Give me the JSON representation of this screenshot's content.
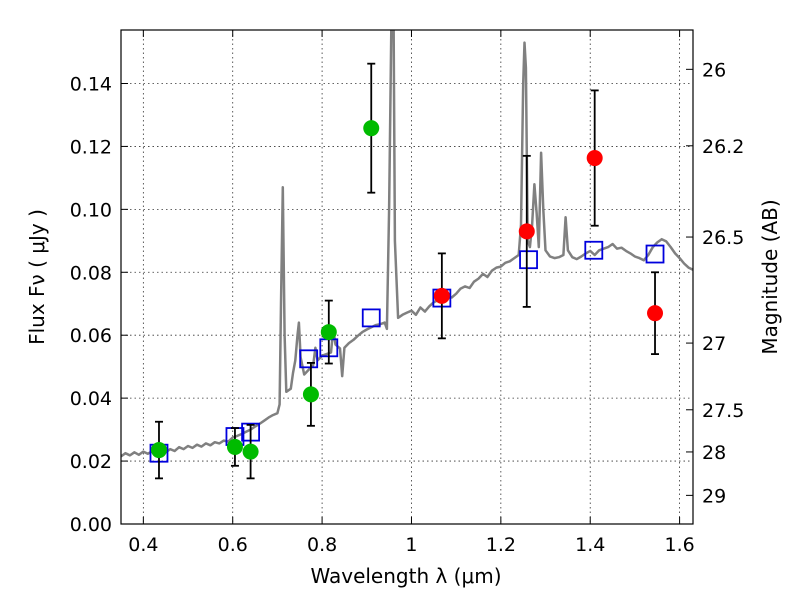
{
  "chart_data": {
    "type": "scatter",
    "xlabel": "Wavelength  λ (μm)",
    "ylabel": "Flux  Fν  ( μJy )",
    "y2label": "Magnitude (AB)",
    "xlim": [
      0.35,
      1.63
    ],
    "ylim": [
      0.0,
      0.157
    ],
    "grid": true,
    "x_ticks": [
      0.4,
      0.6,
      0.8,
      1.0,
      1.2,
      1.4,
      1.6
    ],
    "x_tick_labels": [
      "0.4",
      "0.6",
      "0.8",
      "1",
      "1.2",
      "1.4",
      "1.6"
    ],
    "y_ticks": [
      0.0,
      0.02,
      0.04,
      0.06,
      0.08,
      0.1,
      0.12,
      0.14
    ],
    "y_tick_labels": [
      "0.00",
      "0.02",
      "0.04",
      "0.06",
      "0.08",
      "0.10",
      "0.12",
      "0.14"
    ],
    "y2_ticks": [
      {
        "label": "26",
        "flux": 0.1445
      },
      {
        "label": "26.2",
        "flux": 0.1202
      },
      {
        "label": "26.5",
        "flux": 0.0912
      },
      {
        "label": "27",
        "flux": 0.0575
      },
      {
        "label": "27.5",
        "flux": 0.0363
      },
      {
        "label": "28",
        "flux": 0.0229
      },
      {
        "label": "29",
        "flux": 0.0091
      }
    ],
    "colors": {
      "spectrum": "#808080",
      "green_points": "#00bb00",
      "red_points": "#ff0000",
      "model_squares": "#0000dd",
      "errorbars": "#000000"
    },
    "series": [
      {
        "kind": "spectrum",
        "points": [
          [
            0.35,
            0.0215
          ],
          [
            0.36,
            0.0225
          ],
          [
            0.37,
            0.0218
          ],
          [
            0.38,
            0.0228
          ],
          [
            0.39,
            0.022
          ],
          [
            0.4,
            0.023
          ],
          [
            0.41,
            0.0223
          ],
          [
            0.42,
            0.0232
          ],
          [
            0.43,
            0.0226
          ],
          [
            0.44,
            0.0234
          ],
          [
            0.45,
            0.0228
          ],
          [
            0.46,
            0.0238
          ],
          [
            0.47,
            0.0232
          ],
          [
            0.48,
            0.0244
          ],
          [
            0.49,
            0.0238
          ],
          [
            0.5,
            0.0248
          ],
          [
            0.51,
            0.0242
          ],
          [
            0.52,
            0.0252
          ],
          [
            0.53,
            0.0246
          ],
          [
            0.54,
            0.0256
          ],
          [
            0.55,
            0.025
          ],
          [
            0.56,
            0.026
          ],
          [
            0.57,
            0.0256
          ],
          [
            0.58,
            0.0265
          ],
          [
            0.59,
            0.0262
          ],
          [
            0.6,
            0.0275
          ],
          [
            0.61,
            0.028
          ],
          [
            0.62,
            0.0286
          ],
          [
            0.63,
            0.0293
          ],
          [
            0.64,
            0.03
          ],
          [
            0.65,
            0.031
          ],
          [
            0.66,
            0.0318
          ],
          [
            0.67,
            0.0328
          ],
          [
            0.68,
            0.0338
          ],
          [
            0.69,
            0.0346
          ],
          [
            0.7,
            0.0352
          ],
          [
            0.705,
            0.038
          ],
          [
            0.708,
            0.07
          ],
          [
            0.712,
            0.107
          ],
          [
            0.716,
            0.06
          ],
          [
            0.72,
            0.042
          ],
          [
            0.73,
            0.043
          ],
          [
            0.735,
            0.048
          ],
          [
            0.74,
            0.052
          ],
          [
            0.745,
            0.06
          ],
          [
            0.748,
            0.064
          ],
          [
            0.752,
            0.053
          ],
          [
            0.76,
            0.0475
          ],
          [
            0.77,
            0.049
          ],
          [
            0.78,
            0.0505
          ],
          [
            0.785,
            0.056
          ],
          [
            0.79,
            0.052
          ],
          [
            0.8,
            0.0535
          ],
          [
            0.81,
            0.054
          ],
          [
            0.82,
            0.0545
          ],
          [
            0.825,
            0.062
          ],
          [
            0.83,
            0.057
          ],
          [
            0.84,
            0.0558
          ],
          [
            0.845,
            0.047
          ],
          [
            0.85,
            0.056
          ],
          [
            0.86,
            0.0575
          ],
          [
            0.87,
            0.0585
          ],
          [
            0.88,
            0.0598
          ],
          [
            0.89,
            0.061
          ],
          [
            0.9,
            0.0618
          ],
          [
            0.91,
            0.0625
          ],
          [
            0.92,
            0.0632
          ],
          [
            0.93,
            0.0635
          ],
          [
            0.94,
            0.064
          ],
          [
            0.945,
            0.062
          ],
          [
            0.95,
            0.1
          ],
          [
            0.955,
            0.16
          ],
          [
            0.96,
            0.16
          ],
          [
            0.963,
            0.09
          ],
          [
            0.97,
            0.0655
          ],
          [
            0.98,
            0.0665
          ],
          [
            0.99,
            0.0672
          ],
          [
            1.0,
            0.0678
          ],
          [
            1.01,
            0.0665
          ],
          [
            1.02,
            0.0688
          ],
          [
            1.03,
            0.0675
          ],
          [
            1.04,
            0.0692
          ],
          [
            1.05,
            0.0705
          ],
          [
            1.06,
            0.0712
          ],
          [
            1.07,
            0.0718
          ],
          [
            1.08,
            0.0725
          ],
          [
            1.09,
            0.072
          ],
          [
            1.1,
            0.0732
          ],
          [
            1.11,
            0.0748
          ],
          [
            1.12,
            0.0755
          ],
          [
            1.13,
            0.075
          ],
          [
            1.14,
            0.077
          ],
          [
            1.15,
            0.078
          ],
          [
            1.16,
            0.0795
          ],
          [
            1.17,
            0.0785
          ],
          [
            1.18,
            0.0805
          ],
          [
            1.19,
            0.0815
          ],
          [
            1.2,
            0.0818
          ],
          [
            1.21,
            0.083
          ],
          [
            1.22,
            0.0835
          ],
          [
            1.23,
            0.0845
          ],
          [
            1.24,
            0.0855
          ],
          [
            1.245,
            0.095
          ],
          [
            1.25,
            0.14
          ],
          [
            1.253,
            0.153
          ],
          [
            1.256,
            0.145
          ],
          [
            1.26,
            0.09
          ],
          [
            1.265,
            0.088
          ],
          [
            1.27,
            0.095
          ],
          [
            1.275,
            0.108
          ],
          [
            1.28,
            0.099
          ],
          [
            1.285,
            0.088
          ],
          [
            1.29,
            0.118
          ],
          [
            1.295,
            0.1
          ],
          [
            1.3,
            0.087
          ],
          [
            1.31,
            0.085
          ],
          [
            1.32,
            0.0845
          ],
          [
            1.33,
            0.0848
          ],
          [
            1.34,
            0.0855
          ],
          [
            1.345,
            0.0975
          ],
          [
            1.35,
            0.087
          ],
          [
            1.36,
            0.0848
          ],
          [
            1.37,
            0.0842
          ],
          [
            1.38,
            0.085
          ],
          [
            1.39,
            0.086
          ],
          [
            1.4,
            0.0868
          ],
          [
            1.41,
            0.0855
          ],
          [
            1.42,
            0.087
          ],
          [
            1.43,
            0.0875
          ],
          [
            1.44,
            0.088
          ],
          [
            1.45,
            0.089
          ],
          [
            1.46,
            0.0875
          ],
          [
            1.47,
            0.0878
          ],
          [
            1.48,
            0.0868
          ],
          [
            1.49,
            0.086
          ],
          [
            1.5,
            0.085
          ],
          [
            1.51,
            0.0845
          ],
          [
            1.52,
            0.0838
          ],
          [
            1.53,
            0.0855
          ],
          [
            1.54,
            0.088
          ],
          [
            1.55,
            0.0895
          ],
          [
            1.56,
            0.0905
          ],
          [
            1.57,
            0.0898
          ],
          [
            1.58,
            0.088
          ],
          [
            1.59,
            0.086
          ],
          [
            1.6,
            0.0845
          ],
          [
            1.61,
            0.0828
          ],
          [
            1.62,
            0.0815
          ],
          [
            1.63,
            0.0808
          ]
        ]
      },
      {
        "kind": "green_points",
        "points": [
          {
            "x": 0.435,
            "y": 0.0235,
            "err": 0.009
          },
          {
            "x": 0.605,
            "y": 0.0245,
            "err": 0.006
          },
          {
            "x": 0.64,
            "y": 0.023,
            "err": 0.0085
          },
          {
            "x": 0.775,
            "y": 0.0412,
            "err": 0.01
          },
          {
            "x": 0.815,
            "y": 0.061,
            "err": 0.01
          },
          {
            "x": 0.91,
            "y": 0.1258,
            "err": 0.0205
          }
        ]
      },
      {
        "kind": "red_points",
        "points": [
          {
            "x": 1.068,
            "y": 0.0725,
            "err": 0.0135
          },
          {
            "x": 1.258,
            "y": 0.093,
            "err": 0.024
          },
          {
            "x": 1.41,
            "y": 0.1163,
            "err": 0.0215
          },
          {
            "x": 1.545,
            "y": 0.067,
            "err": 0.013
          }
        ]
      },
      {
        "kind": "model_squares",
        "points": [
          {
            "x": 0.435,
            "y": 0.0225
          },
          {
            "x": 0.605,
            "y": 0.0278
          },
          {
            "x": 0.64,
            "y": 0.0292
          },
          {
            "x": 0.77,
            "y": 0.0525
          },
          {
            "x": 0.815,
            "y": 0.056
          },
          {
            "x": 0.91,
            "y": 0.0655
          },
          {
            "x": 1.068,
            "y": 0.0718
          },
          {
            "x": 1.262,
            "y": 0.084
          },
          {
            "x": 1.408,
            "y": 0.087
          },
          {
            "x": 1.545,
            "y": 0.0858
          }
        ]
      }
    ]
  }
}
